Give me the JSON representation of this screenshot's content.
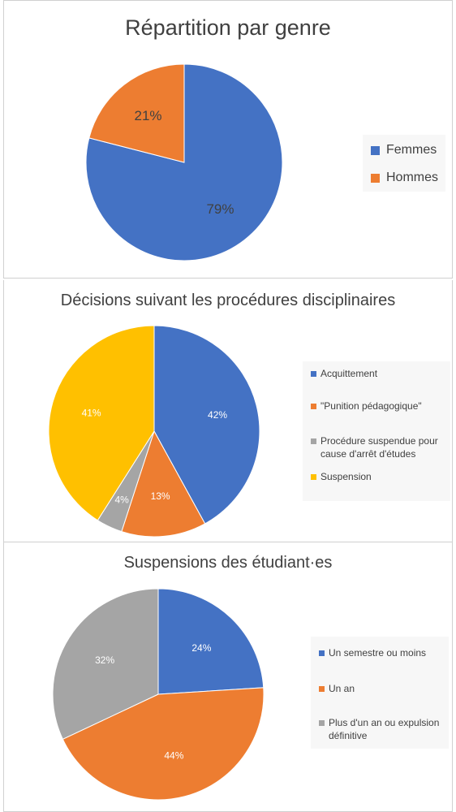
{
  "chart_data": [
    {
      "type": "pie",
      "title": "Répartition par genre",
      "categories": [
        "Femmes",
        "Hommes"
      ],
      "values": [
        79,
        21
      ],
      "data_labels": [
        "79%",
        "21%"
      ],
      "colors": [
        "#4472C4",
        "#ED7D31"
      ],
      "legend": "right",
      "label_color": "#404040"
    },
    {
      "type": "pie",
      "title": "Décisions suivant les procédures disciplinaires",
      "categories": [
        "Acquittement",
        "\"Punition pédagogique\"",
        "Procédure suspendue pour cause d'arrêt d'études",
        "Suspension"
      ],
      "values": [
        42,
        13,
        4,
        41
      ],
      "data_labels": [
        "42%",
        "13%",
        "4%",
        "41%"
      ],
      "colors": [
        "#4472C4",
        "#ED7D31",
        "#A5A5A5",
        "#FFC000"
      ],
      "legend": "right",
      "label_color": "#ffffff"
    },
    {
      "type": "pie",
      "title": "Suspensions des étudiant·es",
      "categories": [
        "Un semestre ou moins",
        "Un an",
        "Plus d'un an ou expulsion définitive"
      ],
      "values": [
        24,
        44,
        32
      ],
      "data_labels": [
        "24%",
        "44%",
        "32%"
      ],
      "colors": [
        "#4472C4",
        "#ED7D31",
        "#A5A5A5"
      ],
      "legend": "right",
      "label_color": "#ffffff"
    }
  ]
}
